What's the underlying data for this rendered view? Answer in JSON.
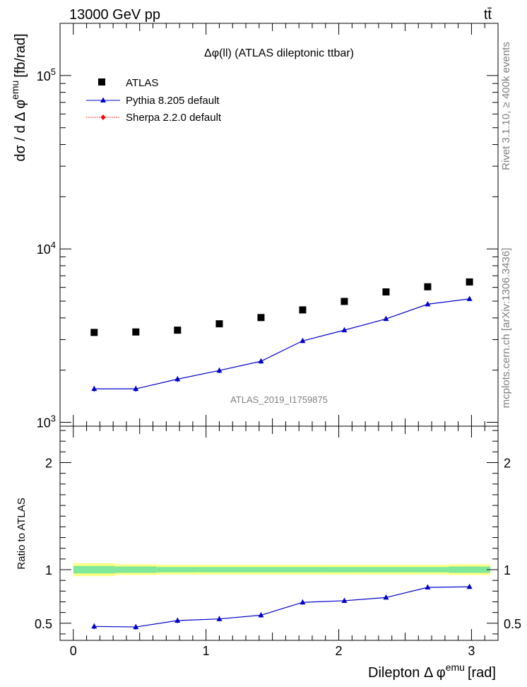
{
  "header": {
    "left": "13000 GeV pp",
    "right": "tt̄"
  },
  "side_labels": {
    "rivet": "Rivet 3.1.10, ≥ 400k events",
    "mcplots": "mcplots.cern.ch [arXiv:1306.3436]"
  },
  "colors": {
    "atlas": "#000000",
    "pythia": "#0000cc",
    "sherpa": "#ff0000",
    "band_inner": "#7fe89b",
    "band_outer": "#ffff80",
    "watermark": "#808080"
  },
  "chart_data": [
    {
      "type": "scatter",
      "title": "Δφ(ll) (ATLAS dileptonic ttbar)",
      "watermark": "ATLAS_2019_I1759875",
      "ylabel_main": "dσ / d Δ φ",
      "ylabel_sup": "emu",
      "ylabel_unit": "[fb/rad]",
      "yscale": "log",
      "xlim": [
        -0.1,
        3.2
      ],
      "ylim": [
        950,
        200000
      ],
      "ytick_labels": [
        {
          "value": 1000,
          "base": "10",
          "exp": "3"
        },
        {
          "value": 10000,
          "base": "10",
          "exp": "4"
        },
        {
          "value": 100000,
          "base": "10",
          "exp": "5"
        }
      ],
      "x": [
        0.157,
        0.471,
        0.785,
        1.1,
        1.414,
        1.728,
        2.042,
        2.356,
        2.67,
        2.985
      ],
      "series": [
        {
          "name": "ATLAS",
          "marker": "square",
          "values": [
            3300,
            3320,
            3400,
            3700,
            4020,
            4450,
            4980,
            5650,
            6050,
            6450
          ]
        },
        {
          "name": "Pythia 8.205 default",
          "marker": "triangle",
          "values": [
            1560,
            1560,
            1775,
            1990,
            2250,
            2950,
            3400,
            3950,
            4800,
            5150
          ],
          "errors": [
            60,
            60,
            65,
            70,
            75,
            90,
            95,
            105,
            120,
            125
          ]
        },
        {
          "name": "Sherpa 2.2.0 default",
          "marker": "diamond",
          "values": []
        }
      ]
    },
    {
      "type": "line",
      "ylabel": "Ratio to ATLAS",
      "xlabel_main": "Dilepton Δ φ",
      "xlabel_sup": "emu",
      "xlabel_unit": "[rad]",
      "xlim": [
        -0.1,
        3.2
      ],
      "ylim": [
        0.34,
        2.34
      ],
      "x_ticks": [
        0,
        1,
        2,
        3
      ],
      "x_tick_labels": [
        "0",
        "1",
        "2",
        "3"
      ],
      "y_ticks": [
        0.5,
        1,
        2
      ],
      "y_tick_labels": [
        "0.5",
        "1",
        "2"
      ],
      "x": [
        0.157,
        0.471,
        0.785,
        1.1,
        1.414,
        1.728,
        2.042,
        2.356,
        2.67,
        2.985
      ],
      "series": [
        {
          "name": "Pythia 8.205 default",
          "values": [
            0.47,
            0.465,
            0.525,
            0.54,
            0.575,
            0.695,
            0.71,
            0.74,
            0.835,
            0.84
          ],
          "errors": [
            0.025,
            0.025,
            0.025,
            0.022,
            0.022,
            0.02,
            0.018,
            0.018,
            0.017,
            0.015
          ]
        }
      ],
      "band": {
        "edges": [
          0.0,
          0.314,
          0.628,
          0.942,
          1.257,
          1.571,
          1.885,
          2.199,
          2.513,
          2.827,
          3.142
        ],
        "inner": [
          0.035,
          0.03,
          0.025,
          0.025,
          0.025,
          0.025,
          0.025,
          0.025,
          0.025,
          0.03
        ],
        "outer": [
          0.06,
          0.05,
          0.045,
          0.045,
          0.045,
          0.045,
          0.045,
          0.045,
          0.045,
          0.05
        ]
      }
    }
  ]
}
